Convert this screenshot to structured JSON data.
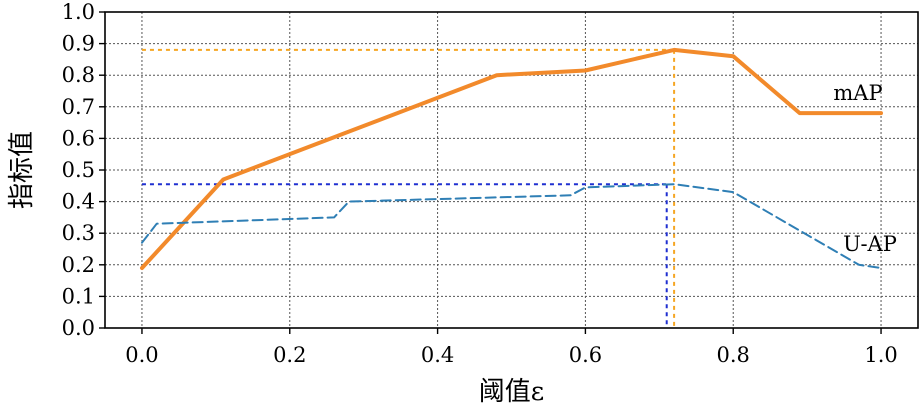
{
  "chart_data": {
    "type": "line",
    "title": "",
    "xlabel": "阈值ε",
    "ylabel": "指标值",
    "xlim": [
      -0.05,
      1.05
    ],
    "ylim": [
      0.0,
      1.0
    ],
    "grid": true,
    "legend": "none",
    "x_ticks": [
      "0.0",
      "0.2",
      "0.4",
      "0.6",
      "0.8",
      "1.0"
    ],
    "y_ticks": [
      "0.0",
      "0.1",
      "0.2",
      "0.3",
      "0.4",
      "0.5",
      "0.6",
      "0.7",
      "0.8",
      "0.9",
      "1.0"
    ],
    "series": [
      {
        "name": "mAP",
        "color": "#f28a2b",
        "style": "solid",
        "x": [
          0.0,
          0.11,
          0.48,
          0.6,
          0.72,
          0.8,
          0.89,
          1.0
        ],
        "values": [
          0.19,
          0.47,
          0.8,
          0.815,
          0.88,
          0.86,
          0.68,
          0.68
        ]
      },
      {
        "name": "U-AP",
        "color": "#2f7fb5",
        "style": "dashed",
        "x": [
          0.0,
          0.02,
          0.26,
          0.28,
          0.58,
          0.6,
          0.72,
          0.8,
          0.97,
          1.0
        ],
        "values": [
          0.27,
          0.33,
          0.35,
          0.4,
          0.42,
          0.445,
          0.455,
          0.43,
          0.2,
          0.19
        ]
      }
    ],
    "reference_lines": [
      {
        "color": "#f5a623",
        "x": 0.72,
        "y": 0.88
      },
      {
        "color": "#1f2fd0",
        "x": 0.71,
        "y": 0.455
      }
    ]
  }
}
